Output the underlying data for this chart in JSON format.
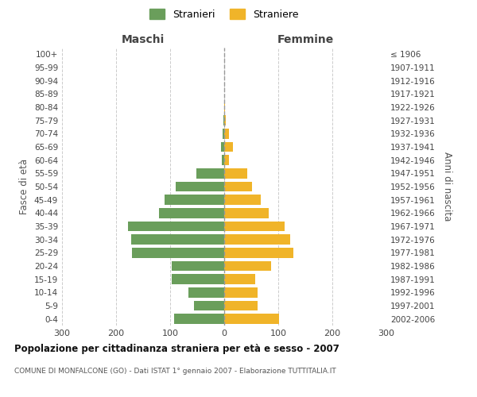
{
  "age_groups": [
    "0-4",
    "5-9",
    "10-14",
    "15-19",
    "20-24",
    "25-29",
    "30-34",
    "35-39",
    "40-44",
    "45-49",
    "50-54",
    "55-59",
    "60-64",
    "65-69",
    "70-74",
    "75-79",
    "80-84",
    "85-89",
    "90-94",
    "95-99",
    "100+"
  ],
  "birth_years": [
    "2002-2006",
    "1997-2001",
    "1992-1996",
    "1987-1991",
    "1982-1986",
    "1977-1981",
    "1972-1976",
    "1967-1971",
    "1962-1966",
    "1957-1961",
    "1952-1956",
    "1947-1951",
    "1942-1946",
    "1937-1941",
    "1932-1936",
    "1927-1931",
    "1922-1926",
    "1917-1921",
    "1912-1916",
    "1907-1911",
    "≤ 1906"
  ],
  "maschi": [
    92,
    56,
    66,
    97,
    97,
    170,
    172,
    178,
    120,
    110,
    90,
    52,
    4,
    6,
    3,
    1,
    0,
    0,
    0,
    0,
    0
  ],
  "femmine": [
    102,
    62,
    62,
    57,
    87,
    128,
    122,
    112,
    82,
    68,
    52,
    42,
    9,
    16,
    9,
    3,
    2,
    0,
    0,
    0,
    0
  ],
  "color_maschi": "#6a9e5b",
  "color_femmine": "#f0b429",
  "xlabel_left": "Maschi",
  "xlabel_right": "Femmine",
  "ylabel_left": "Fasce di età",
  "ylabel_right": "Anni di nascita",
  "legend_stranieri": "Stranieri",
  "legend_straniere": "Straniere",
  "title": "Popolazione per cittadinanza straniera per età e sesso - 2007",
  "subtitle": "COMUNE DI MONFALCONE (GO) - Dati ISTAT 1° gennaio 2007 - Elaborazione TUTTITALIA.IT",
  "xlim": 300,
  "background_color": "#ffffff",
  "grid_color": "#cccccc"
}
